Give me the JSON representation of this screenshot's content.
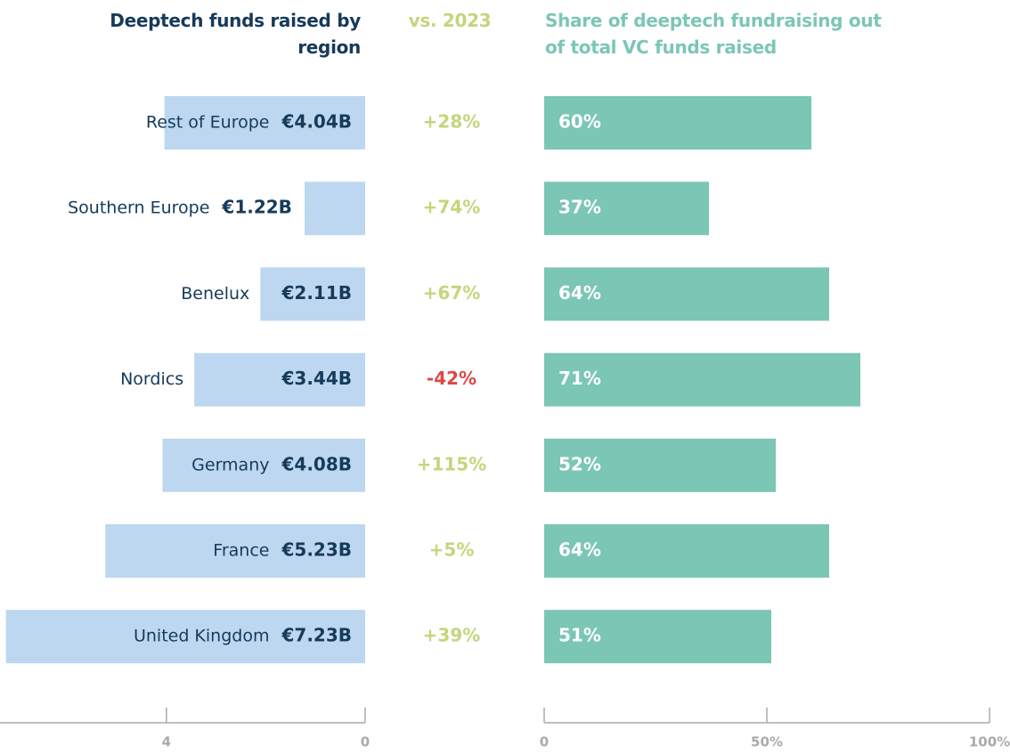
{
  "chart_data": [
    {
      "type": "bar",
      "orientation": "horizontal",
      "reversed": true,
      "title": "Deeptech funds raised by region",
      "categories": [
        "Rest of Europe",
        "Southern Europe",
        "Benelux",
        "Nordics",
        "Germany",
        "France",
        "United Kingdom"
      ],
      "values": [
        4.04,
        1.22,
        2.11,
        3.44,
        4.08,
        5.23,
        7.23
      ],
      "value_labels": [
        "€4.04B",
        "€1.22B",
        "€2.11B",
        "€3.44B",
        "€4.08B",
        "€5.23B",
        "€7.23B"
      ],
      "color": "#bdd7f0",
      "xlim": [
        0,
        7.35
      ],
      "xticks": [
        4,
        0
      ]
    },
    {
      "type": "change",
      "title": "vs. 2023",
      "values": [
        28,
        74,
        67,
        -42,
        115,
        5,
        39
      ],
      "value_labels": [
        "+28%",
        "+74%",
        "+67%",
        "-42%",
        "+115%",
        "+5%",
        "+39%"
      ],
      "positive_color": "#c3d67c",
      "negative_color": "#d94a45"
    },
    {
      "type": "bar",
      "orientation": "horizontal",
      "title": "Share of deeptech fundraising out of total VC funds raised",
      "values": [
        60,
        37,
        64,
        71,
        52,
        64,
        51
      ],
      "value_labels": [
        "60%",
        "37%",
        "64%",
        "71%",
        "52%",
        "64%",
        "51%"
      ],
      "color": "#7cc6b5",
      "xlim": [
        0,
        100
      ],
      "xticks": [
        0,
        {
          "value": 50,
          "label": "50%"
        },
        {
          "value": 100,
          "label": "100%"
        }
      ]
    }
  ]
}
